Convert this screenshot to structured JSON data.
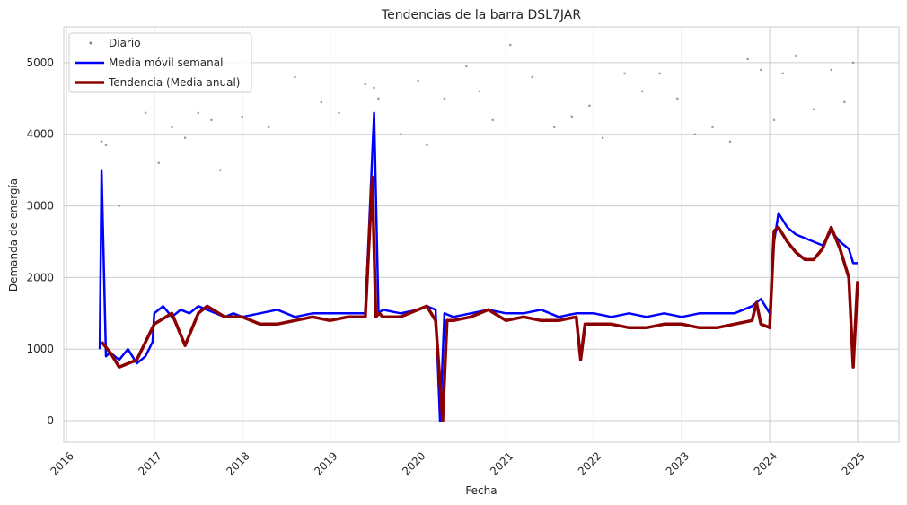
{
  "chart_data": {
    "type": "line",
    "title": "Tendencias de la barra DSL7JAR",
    "xlabel": "Fecha",
    "ylabel": "Demanda de energía",
    "xlim": [
      2015.97,
      2025.47
    ],
    "ylim": [
      -300,
      5500
    ],
    "x_ticks": [
      2016,
      2017,
      2018,
      2019,
      2020,
      2021,
      2022,
      2023,
      2024,
      2025
    ],
    "x_tick_labels": [
      "2016",
      "2017",
      "2018",
      "2019",
      "2020",
      "2021",
      "2022",
      "2023",
      "2024",
      "2025"
    ],
    "y_ticks": [
      0,
      1000,
      2000,
      3000,
      4000,
      5000
    ],
    "y_tick_labels": [
      "0",
      "1000",
      "2000",
      "3000",
      "4000",
      "5000"
    ],
    "grid": true,
    "legend_position": "top-left",
    "series": [
      {
        "name": "Diario",
        "style": "scatter",
        "color": "#808080",
        "x": [
          2016.4,
          2016.45,
          2016.6,
          2016.9,
          2017.05,
          2017.2,
          2017.35,
          2017.5,
          2017.65,
          2017.75,
          2018.0,
          2018.3,
          2018.6,
          2018.9,
          2019.1,
          2019.4,
          2019.5,
          2019.55,
          2019.8,
          2020.0,
          2020.1,
          2020.3,
          2020.55,
          2020.7,
          2020.85,
          2021.05,
          2021.3,
          2021.55,
          2021.75,
          2021.95,
          2022.1,
          2022.35,
          2022.55,
          2022.75,
          2022.95,
          2023.15,
          2023.35,
          2023.55,
          2023.75,
          2023.9,
          2024.05,
          2024.15,
          2024.3,
          2024.5,
          2024.7,
          2024.85,
          2024.95
        ],
        "y": [
          3900,
          3850,
          3000,
          4300,
          3600,
          4100,
          3950,
          4300,
          4200,
          3500,
          4250,
          4100,
          4800,
          4450,
          4300,
          4700,
          4650,
          4500,
          4000,
          4750,
          3850,
          4500,
          4950,
          4600,
          4200,
          5250,
          4800,
          4100,
          4250,
          4400,
          3950,
          4850,
          4600,
          4850,
          4500,
          4000,
          4100,
          3900,
          5050,
          4900,
          4200,
          4850,
          5100,
          4350,
          4900,
          4450,
          5000
        ]
      },
      {
        "name": "Media móvil semanal",
        "style": "line",
        "color": "#0000ff",
        "x": [
          2016.0,
          2016.38,
          2016.4,
          2016.45,
          2016.5,
          2016.6,
          2016.7,
          2016.8,
          2016.9,
          2016.98,
          2017.0,
          2017.1,
          2017.2,
          2017.3,
          2017.4,
          2017.5,
          2017.6,
          2017.7,
          2017.8,
          2017.9,
          2018.0,
          2018.2,
          2018.4,
          2018.6,
          2018.8,
          2019.0,
          2019.2,
          2019.4,
          2019.5,
          2019.55,
          2019.6,
          2019.8,
          2020.0,
          2020.1,
          2020.2,
          2020.25,
          2020.3,
          2020.4,
          2020.6,
          2020.8,
          2021.0,
          2021.2,
          2021.4,
          2021.6,
          2021.8,
          2022.0,
          2022.2,
          2022.4,
          2022.6,
          2022.8,
          2023.0,
          2023.2,
          2023.4,
          2023.6,
          2023.8,
          2023.9,
          2024.0,
          2024.05,
          2024.1,
          2024.2,
          2024.3,
          2024.4,
          2024.5,
          2024.6,
          2024.7,
          2024.8,
          2024.9,
          2024.95,
          2025.0
        ],
        "y": [
          null,
          1000,
          3500,
          900,
          950,
          850,
          1000,
          800,
          900,
          1100,
          1500,
          1600,
          1450,
          1550,
          1500,
          1600,
          1550,
          1500,
          1450,
          1500,
          1450,
          1500,
          1550,
          1450,
          1500,
          1500,
          1500,
          1500,
          4300,
          1500,
          1550,
          1500,
          1550,
          1600,
          1550,
          0,
          1500,
          1450,
          1500,
          1550,
          1500,
          1500,
          1550,
          1450,
          1500,
          1500,
          1450,
          1500,
          1450,
          1500,
          1450,
          1500,
          1500,
          1500,
          1600,
          1700,
          1500,
          2500,
          2900,
          2700,
          2600,
          2550,
          2500,
          2450,
          2650,
          2500,
          2400,
          2200,
          2200
        ]
      },
      {
        "name": "Tendencia (Media anual)",
        "style": "line",
        "color": "#8b0000",
        "x": [
          2016.4,
          2016.5,
          2016.6,
          2016.8,
          2017.0,
          2017.2,
          2017.35,
          2017.5,
          2017.6,
          2017.8,
          2018.0,
          2018.2,
          2018.4,
          2018.6,
          2018.8,
          2019.0,
          2019.2,
          2019.4,
          2019.48,
          2019.52,
          2019.56,
          2019.6,
          2019.8,
          2020.0,
          2020.1,
          2020.2,
          2020.28,
          2020.33,
          2020.4,
          2020.6,
          2020.8,
          2021.0,
          2021.2,
          2021.4,
          2021.6,
          2021.8,
          2021.85,
          2021.9,
          2022.0,
          2022.2,
          2022.4,
          2022.6,
          2022.8,
          2023.0,
          2023.2,
          2023.4,
          2023.6,
          2023.8,
          2023.85,
          2023.9,
          2024.0,
          2024.05,
          2024.1,
          2024.2,
          2024.3,
          2024.4,
          2024.5,
          2024.6,
          2024.7,
          2024.8,
          2024.9,
          2024.95,
          2025.0
        ],
        "y": [
          1100,
          950,
          750,
          850,
          1350,
          1500,
          1050,
          1500,
          1600,
          1450,
          1450,
          1350,
          1350,
          1400,
          1450,
          1400,
          1450,
          1450,
          3400,
          1450,
          1500,
          1450,
          1450,
          1550,
          1600,
          1400,
          0,
          1400,
          1400,
          1450,
          1550,
          1400,
          1450,
          1400,
          1400,
          1450,
          850,
          1350,
          1350,
          1350,
          1300,
          1300,
          1350,
          1350,
          1300,
          1300,
          1350,
          1400,
          1650,
          1350,
          1300,
          2650,
          2700,
          2500,
          2350,
          2250,
          2250,
          2400,
          2700,
          2400,
          2000,
          750,
          1950
        ]
      }
    ]
  }
}
